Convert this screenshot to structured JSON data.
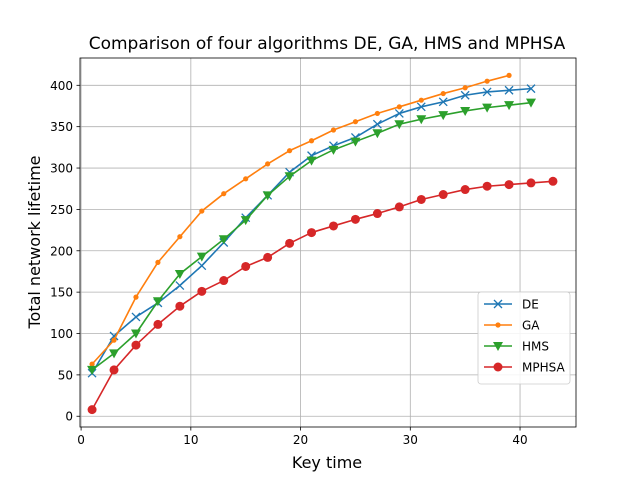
{
  "chart_data": {
    "type": "line",
    "title": "Comparison of four algorithms DE, GA, HMS and MPHSA",
    "xlabel": "Key time",
    "ylabel": "Total network lifetime",
    "xlim": [
      -0.1,
      45.1
    ],
    "ylim": [
      -13,
      433
    ],
    "xticks": [
      0,
      10,
      20,
      30,
      40
    ],
    "yticks": [
      0,
      50,
      100,
      150,
      200,
      250,
      300,
      350,
      400
    ],
    "grid": true,
    "legend_position": "lower-right",
    "series": [
      {
        "name": "DE",
        "color": "#1f77b4",
        "marker": "x",
        "x": [
          1,
          3,
          5,
          7,
          9,
          11,
          13,
          15,
          17,
          19,
          21,
          23,
          25,
          27,
          29,
          31,
          33,
          35,
          37,
          39,
          41
        ],
        "y": [
          52,
          97,
          120,
          137,
          158,
          182,
          210,
          240,
          267,
          295,
          315,
          327,
          337,
          353,
          366,
          374,
          380,
          388,
          392,
          394,
          396
        ]
      },
      {
        "name": "GA",
        "color": "#ff7f0e",
        "marker": "dot",
        "x": [
          1,
          3,
          5,
          7,
          9,
          11,
          13,
          15,
          17,
          19,
          21,
          23,
          25,
          27,
          29,
          31,
          33,
          35,
          37,
          39
        ],
        "y": [
          63,
          92,
          144,
          186,
          217,
          248,
          269,
          287,
          305,
          321,
          333,
          346,
          356,
          366,
          374,
          382,
          390,
          397,
          405,
          412
        ]
      },
      {
        "name": "HMS",
        "color": "#2ca02c",
        "marker": "triangle-down",
        "x": [
          1,
          3,
          5,
          7,
          9,
          11,
          13,
          15,
          17,
          19,
          21,
          23,
          25,
          27,
          29,
          31,
          33,
          35,
          37,
          39,
          41
        ],
        "y": [
          56,
          76,
          100,
          139,
          172,
          193,
          214,
          237,
          267,
          290,
          309,
          322,
          332,
          342,
          353,
          359,
          364,
          369,
          373,
          376,
          379
        ]
      },
      {
        "name": "MPHSA",
        "color": "#d62728",
        "marker": "circle",
        "x": [
          1,
          3,
          5,
          7,
          9,
          11,
          13,
          15,
          17,
          19,
          21,
          23,
          25,
          27,
          29,
          31,
          33,
          35,
          37,
          39,
          41,
          43
        ],
        "y": [
          8,
          56,
          86,
          111,
          133,
          151,
          164,
          181,
          192,
          209,
          222,
          230,
          238,
          245,
          253,
          262,
          268,
          274,
          278,
          280,
          282,
          284
        ]
      }
    ]
  }
}
